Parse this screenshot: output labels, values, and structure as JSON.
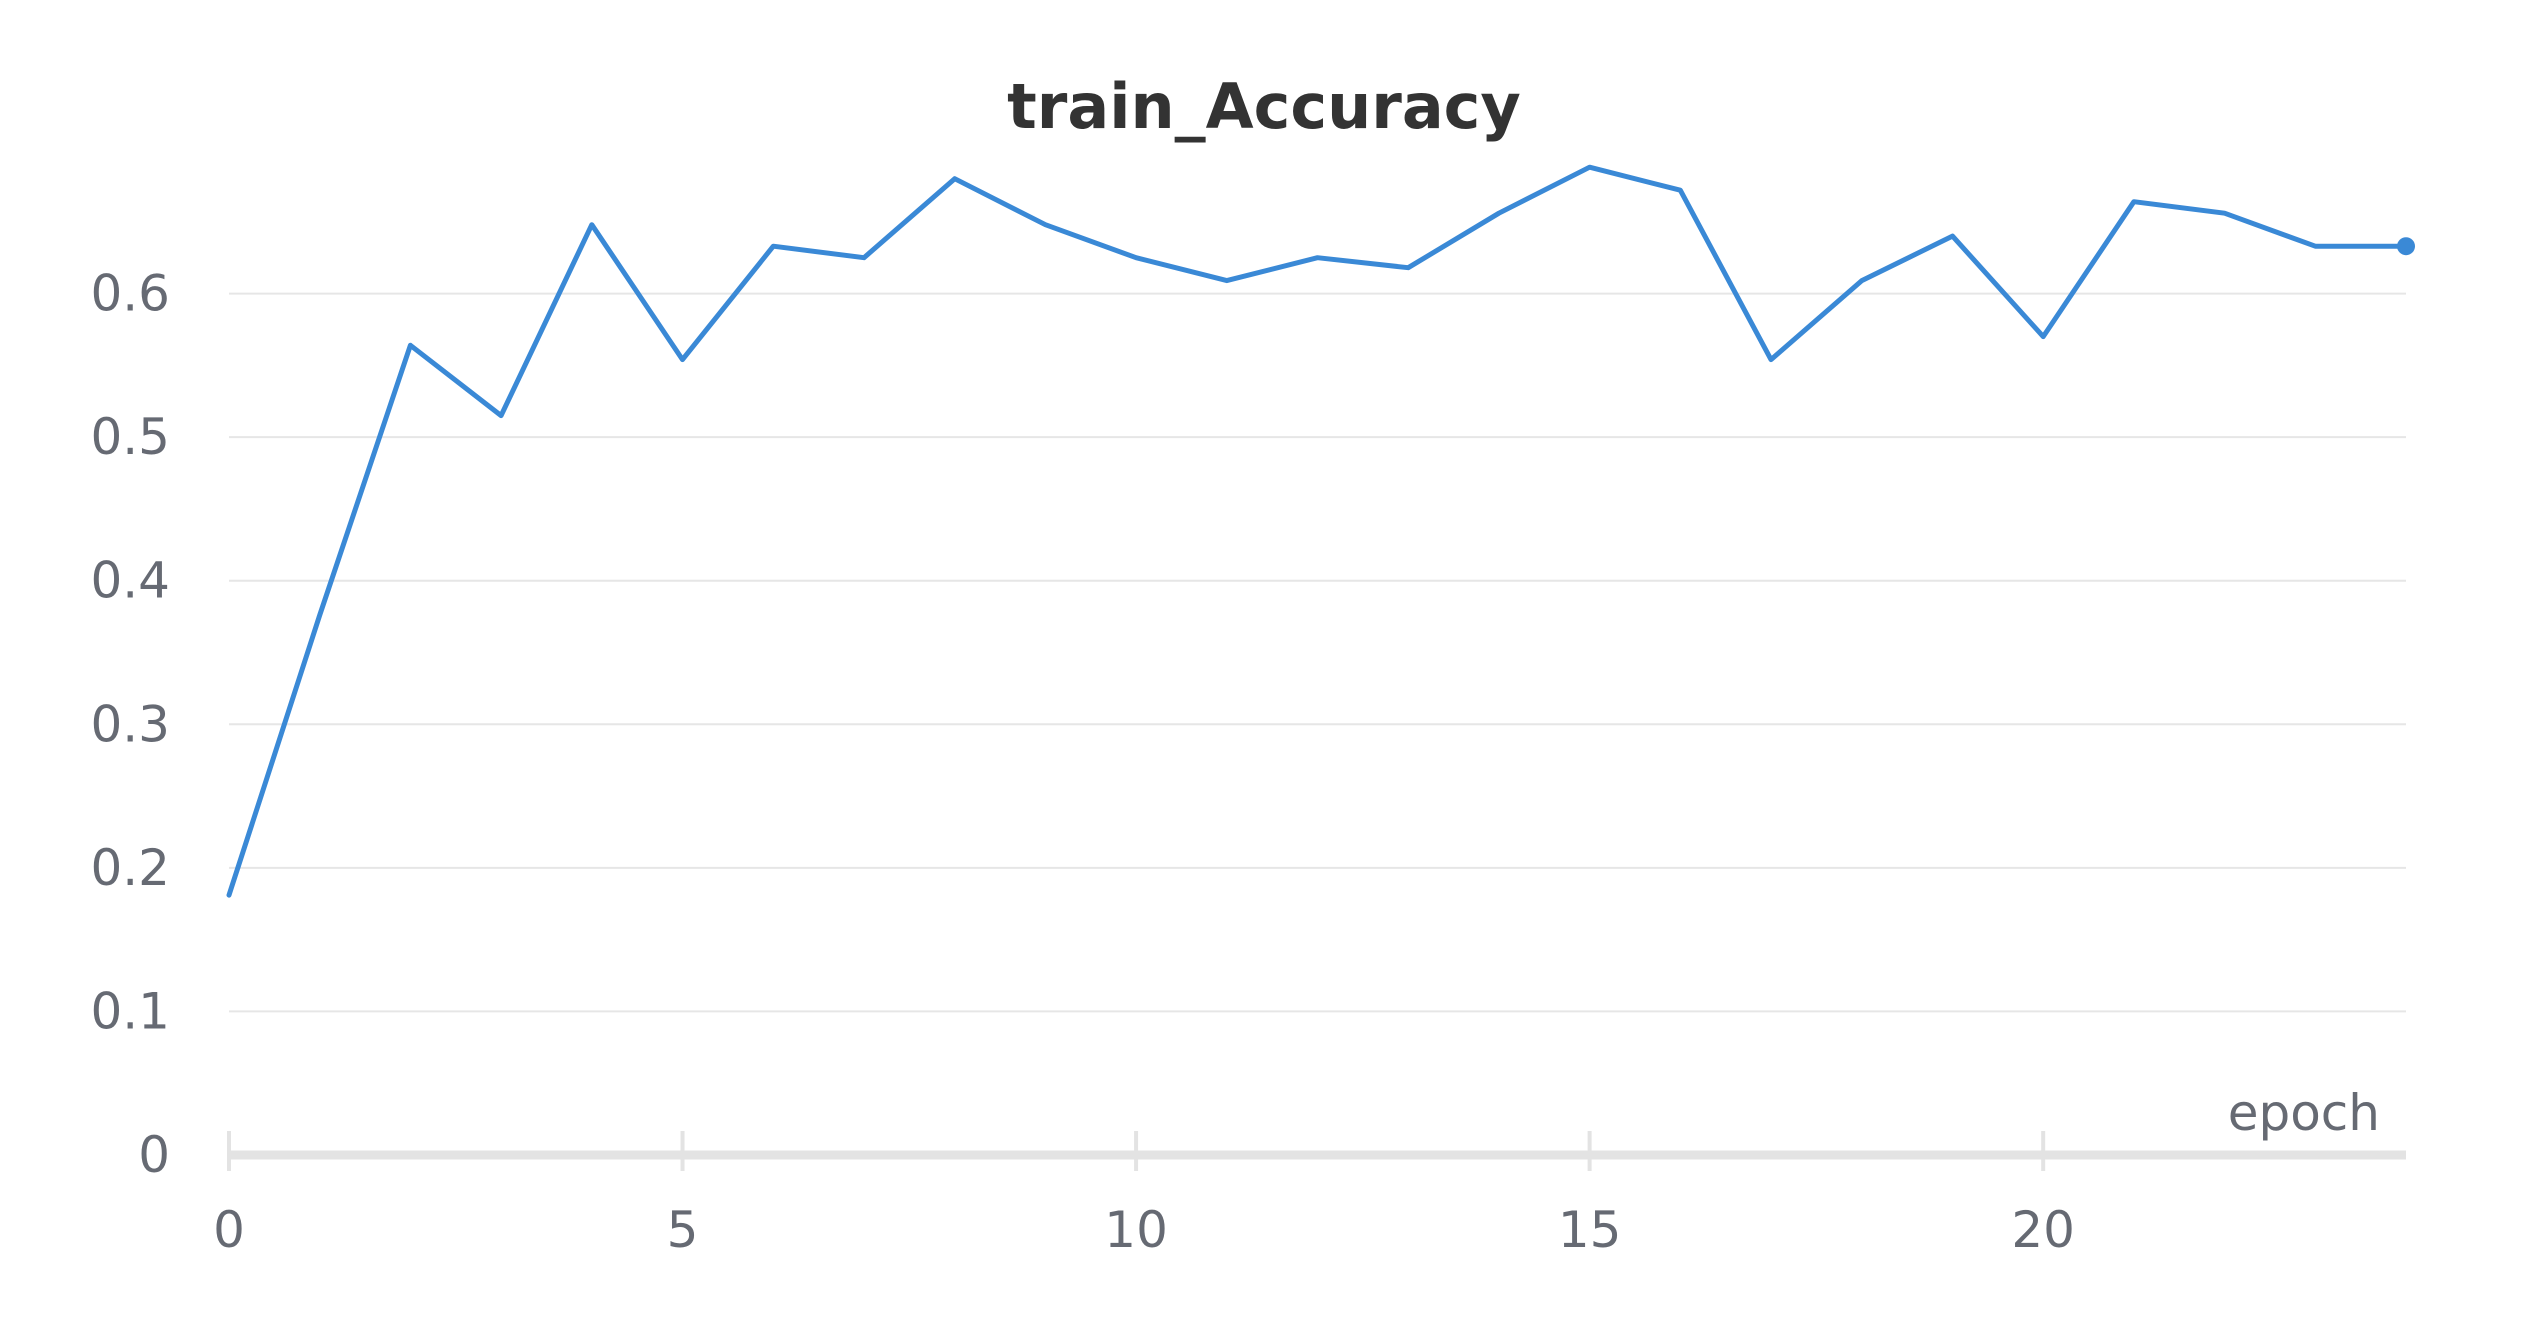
{
  "chart_data": {
    "type": "line",
    "title": "train_Accuracy",
    "xlabel": "epoch",
    "ylabel": "",
    "xlim": [
      0,
      24
    ],
    "ylim": [
      0,
      0.7
    ],
    "xticks": [
      0,
      5,
      10,
      15,
      20
    ],
    "yticks": [
      0,
      0.1,
      0.2,
      0.3,
      0.4,
      0.5,
      0.6
    ],
    "ytick_labels": [
      "0",
      "0.1",
      "0.2",
      "0.3",
      "0.4",
      "0.5",
      "0.6"
    ],
    "grid": true,
    "series": [
      {
        "color": "#3a89d6",
        "x": [
          0,
          1,
          2,
          3,
          4,
          5,
          6,
          7,
          8,
          9,
          10,
          11,
          12,
          13,
          14,
          15,
          16,
          17,
          18,
          19,
          20,
          21,
          22,
          23,
          24
        ],
        "y": [
          0.181,
          0.376,
          0.564,
          0.515,
          0.648,
          0.554,
          0.633,
          0.625,
          0.68,
          0.648,
          0.625,
          0.609,
          0.625,
          0.618,
          0.656,
          0.688,
          0.672,
          0.554,
          0.609,
          0.64,
          0.57,
          0.664,
          0.656,
          0.633,
          0.633
        ]
      }
    ]
  }
}
